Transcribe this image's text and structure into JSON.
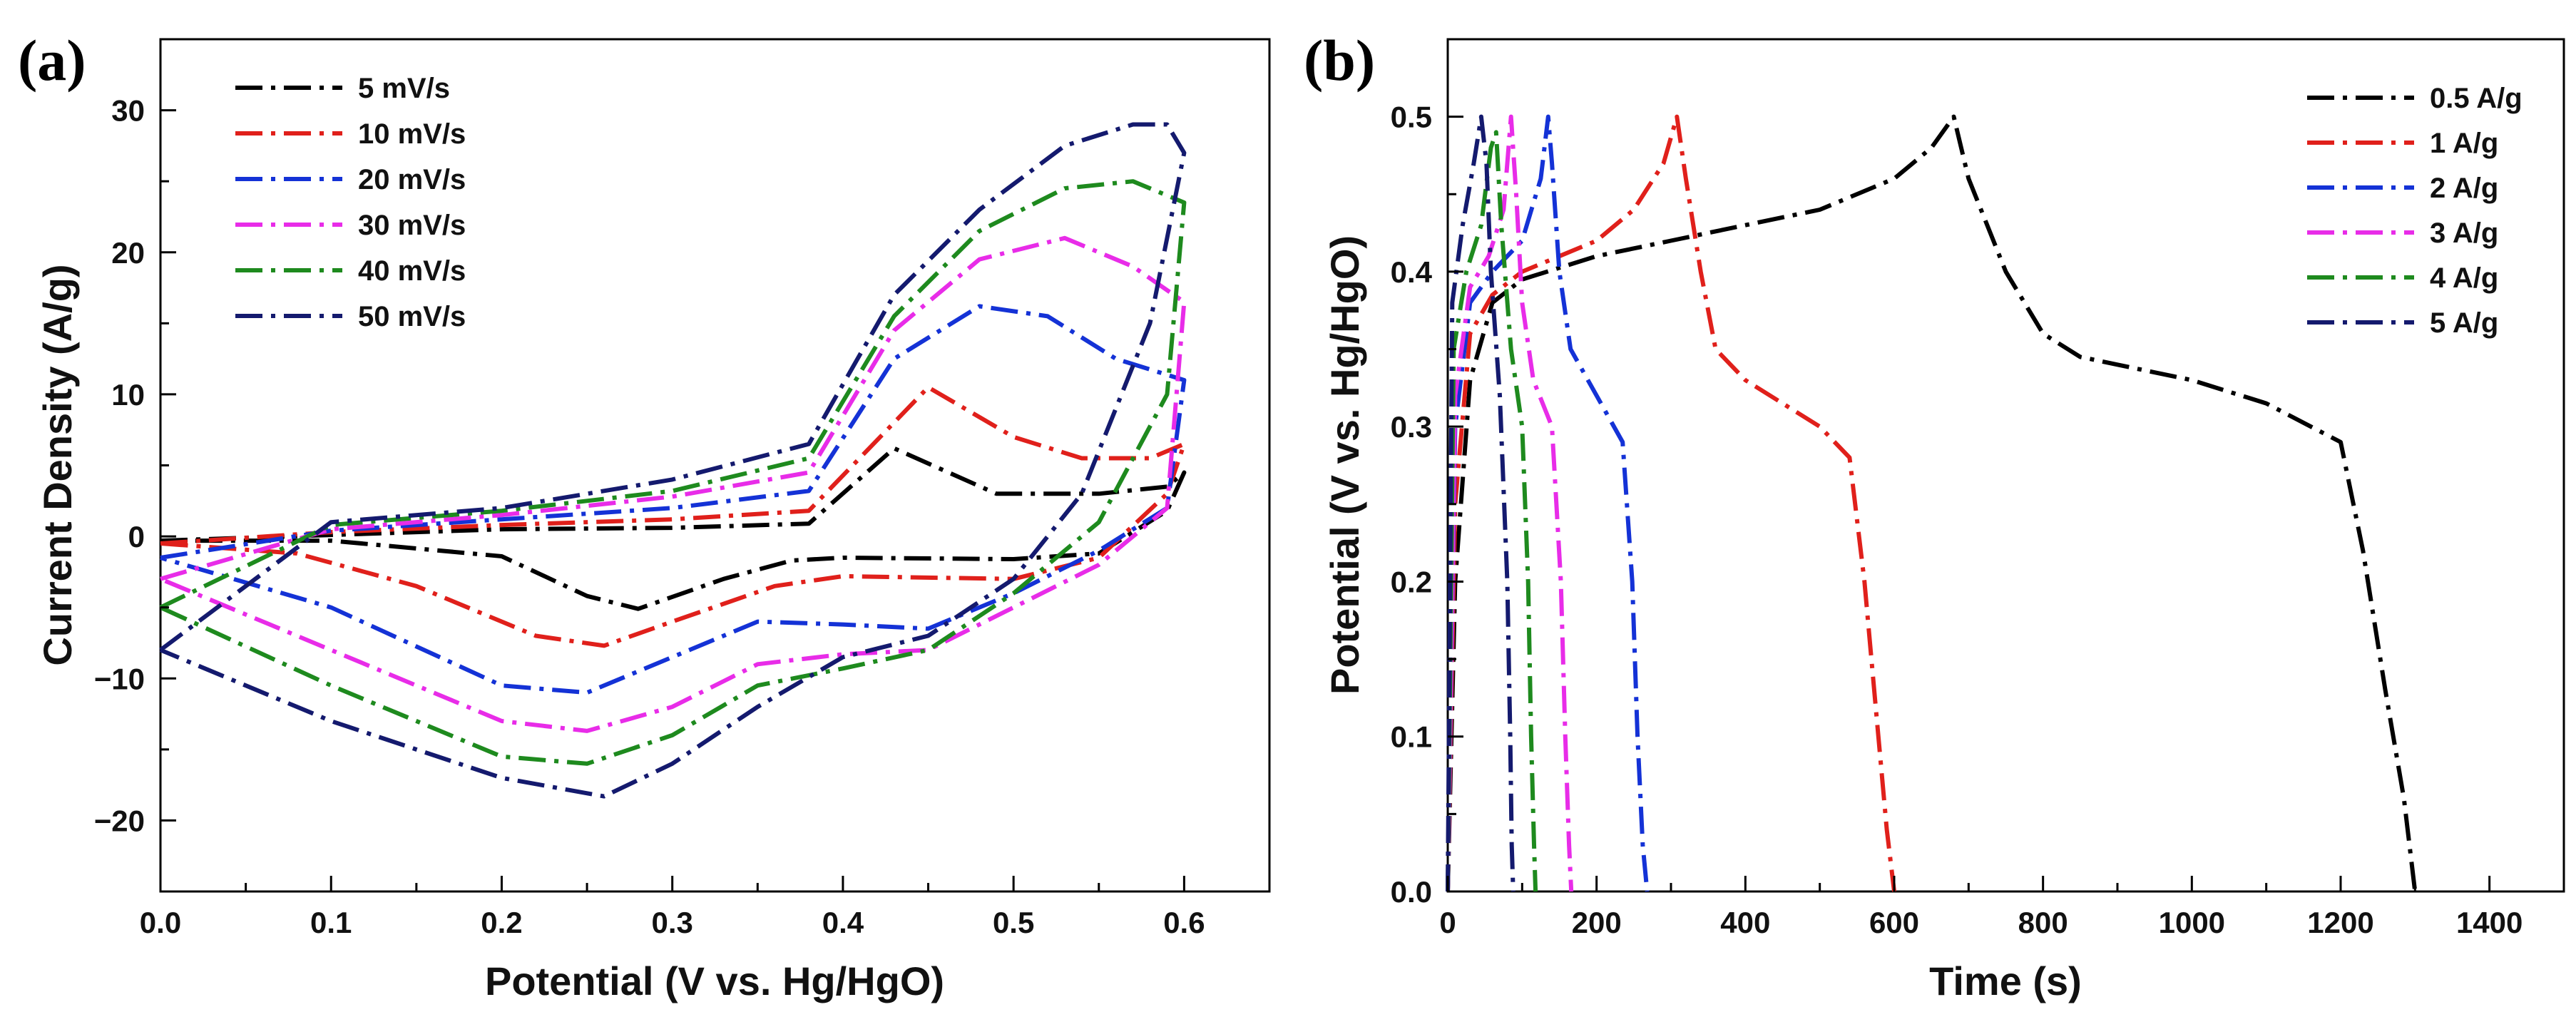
{
  "chart_data": [
    {
      "panel": "(a)",
      "type": "line",
      "title": "",
      "xlabel": "Potential (V vs. Hg/HgO)",
      "ylabel": "Current Density (A/g)",
      "xlim": [
        0.0,
        0.65
      ],
      "ylim": [
        -25,
        35
      ],
      "xticks": [
        0.0,
        0.1,
        0.2,
        0.3,
        0.4,
        0.5,
        0.6
      ],
      "xtick_labels": [
        "0.0",
        "0.1",
        "0.2",
        "0.3",
        "0.4",
        "0.5",
        "0.6"
      ],
      "yticks": [
        -20,
        -10,
        0,
        10,
        20,
        30
      ],
      "ytick_labels": [
        "−20",
        "−10",
        "0",
        "10",
        "20",
        "30"
      ],
      "legend_position": "top-left",
      "series": [
        {
          "name": "5 mV/s",
          "color": "#000000",
          "x": [
            0.0,
            0.1,
            0.2,
            0.3,
            0.38,
            0.43,
            0.49,
            0.55,
            0.59,
            0.6,
            0.59,
            0.55,
            0.5,
            0.4,
            0.37,
            0.33,
            0.28,
            0.25,
            0.2,
            0.1,
            0.0
          ],
          "y": [
            -0.3,
            0.1,
            0.5,
            0.6,
            0.9,
            6.2,
            3.0,
            3.0,
            3.5,
            4.5,
            1.8,
            -1.2,
            -1.6,
            -1.5,
            -1.7,
            -3.0,
            -5.1,
            -4.2,
            -1.4,
            -0.3,
            -0.3
          ]
        },
        {
          "name": "10 mV/s",
          "color": "#e0201b",
          "x": [
            0.0,
            0.1,
            0.2,
            0.3,
            0.38,
            0.45,
            0.5,
            0.54,
            0.58,
            0.6,
            0.59,
            0.55,
            0.5,
            0.4,
            0.36,
            0.3,
            0.26,
            0.22,
            0.15,
            0.08,
            0.0
          ],
          "y": [
            -0.5,
            0.3,
            0.8,
            1.2,
            1.8,
            10.5,
            7.0,
            5.5,
            5.5,
            6.5,
            3.0,
            -1.5,
            -3.0,
            -2.8,
            -3.5,
            -6.0,
            -7.7,
            -7.0,
            -3.5,
            -1.2,
            -0.5
          ]
        },
        {
          "name": "20 mV/s",
          "color": "#1432d6",
          "x": [
            0.0,
            0.1,
            0.2,
            0.3,
            0.38,
            0.43,
            0.48,
            0.52,
            0.56,
            0.6,
            0.59,
            0.55,
            0.5,
            0.45,
            0.4,
            0.35,
            0.3,
            0.25,
            0.2,
            0.1,
            0.0
          ],
          "y": [
            -1.5,
            0.4,
            1.2,
            2.0,
            3.2,
            12.5,
            16.2,
            15.5,
            12.5,
            11.0,
            2.0,
            -1.0,
            -4.0,
            -6.5,
            -6.2,
            -6.0,
            -8.5,
            -11.0,
            -10.5,
            -5.0,
            -1.5
          ]
        },
        {
          "name": "30 mV/s",
          "color": "#e82ce8",
          "x": [
            0.0,
            0.1,
            0.2,
            0.3,
            0.38,
            0.43,
            0.48,
            0.53,
            0.57,
            0.6,
            0.59,
            0.55,
            0.5,
            0.45,
            0.4,
            0.35,
            0.3,
            0.25,
            0.2,
            0.1,
            0.0
          ],
          "y": [
            -3.0,
            0.5,
            1.5,
            2.8,
            4.5,
            14.5,
            19.5,
            21.0,
            19.0,
            16.5,
            2.0,
            -2.0,
            -5.0,
            -8.0,
            -8.3,
            -9.0,
            -12.0,
            -13.7,
            -13.0,
            -8.0,
            -3.0
          ]
        },
        {
          "name": "40 mV/s",
          "color": "#1e8a1e",
          "x": [
            0.0,
            0.1,
            0.2,
            0.3,
            0.38,
            0.43,
            0.48,
            0.53,
            0.57,
            0.6,
            0.59,
            0.55,
            0.5,
            0.45,
            0.4,
            0.35,
            0.3,
            0.25,
            0.2,
            0.1,
            0.0
          ],
          "y": [
            -5.0,
            0.8,
            1.8,
            3.2,
            5.5,
            15.5,
            21.5,
            24.5,
            25.0,
            23.5,
            10.0,
            1.0,
            -4.0,
            -8.0,
            -9.3,
            -10.5,
            -14.0,
            -16.0,
            -15.5,
            -10.5,
            -5.0
          ]
        },
        {
          "name": "50 mV/s",
          "color": "#141a6e",
          "x": [
            0.0,
            0.1,
            0.2,
            0.3,
            0.38,
            0.43,
            0.48,
            0.53,
            0.57,
            0.59,
            0.6,
            0.58,
            0.54,
            0.5,
            0.45,
            0.4,
            0.35,
            0.3,
            0.26,
            0.2,
            0.1,
            0.0
          ],
          "y": [
            -8.0,
            1.0,
            2.0,
            4.0,
            6.5,
            17.0,
            23.0,
            27.5,
            29.0,
            29.0,
            27.0,
            15.0,
            3.0,
            -3.0,
            -7.0,
            -8.5,
            -12.0,
            -16.0,
            -18.3,
            -17.0,
            -13.0,
            -8.0
          ]
        }
      ]
    },
    {
      "panel": "(b)",
      "type": "line",
      "title": "",
      "xlabel": "Time (s)",
      "ylabel": "Potential (V vs. Hg/HgO)",
      "xlim": [
        0,
        1500
      ],
      "ylim": [
        0.0,
        0.55
      ],
      "xticks": [
        0,
        200,
        400,
        600,
        800,
        1000,
        1200,
        1400
      ],
      "xtick_labels": [
        "0",
        "200",
        "400",
        "600",
        "800",
        "1000",
        "1200",
        "1400"
      ],
      "yticks": [
        0.0,
        0.1,
        0.2,
        0.3,
        0.4,
        0.5
      ],
      "ytick_labels": [
        "0.0",
        "0.1",
        "0.2",
        "0.3",
        "0.4",
        "0.5"
      ],
      "legend_position": "top-right",
      "series": [
        {
          "name": "0.5 A/g",
          "color": "#000000",
          "x": [
            0,
            10,
            30,
            60,
            100,
            200,
            300,
            400,
            500,
            600,
            650,
            680,
            700,
            750,
            800,
            850,
            900,
            1000,
            1100,
            1200,
            1230,
            1260,
            1285,
            1300
          ],
          "y": [
            0.0,
            0.2,
            0.33,
            0.38,
            0.395,
            0.41,
            0.42,
            0.43,
            0.44,
            0.46,
            0.48,
            0.5,
            0.46,
            0.4,
            0.36,
            0.345,
            0.34,
            0.33,
            0.315,
            0.29,
            0.22,
            0.13,
            0.06,
            0.0
          ]
        },
        {
          "name": "1 A/g",
          "color": "#e0201b",
          "x": [
            0,
            10,
            30,
            60,
            100,
            150,
            200,
            250,
            290,
            308,
            320,
            340,
            360,
            400,
            450,
            500,
            540,
            560,
            575,
            590,
            600
          ],
          "y": [
            0.0,
            0.25,
            0.36,
            0.385,
            0.4,
            0.41,
            0.42,
            0.44,
            0.47,
            0.5,
            0.46,
            0.4,
            0.35,
            0.33,
            0.315,
            0.3,
            0.28,
            0.2,
            0.12,
            0.04,
            0.0
          ]
        },
        {
          "name": "2 A/g",
          "color": "#1432d6",
          "x": [
            0,
            10,
            30,
            60,
            100,
            125,
            135,
            140,
            150,
            165,
            200,
            235,
            248,
            255,
            262,
            268
          ],
          "y": [
            0.0,
            0.3,
            0.38,
            0.4,
            0.42,
            0.46,
            0.5,
            0.47,
            0.4,
            0.35,
            0.32,
            0.29,
            0.2,
            0.1,
            0.03,
            0.0
          ]
        },
        {
          "name": "3 A/g",
          "color": "#e82ce8",
          "x": [
            0,
            10,
            30,
            55,
            75,
            85,
            92,
            100,
            115,
            140,
            152,
            158,
            163,
            166
          ],
          "y": [
            0.0,
            0.32,
            0.39,
            0.41,
            0.44,
            0.5,
            0.45,
            0.38,
            0.33,
            0.3,
            0.2,
            0.1,
            0.03,
            0.0
          ]
        },
        {
          "name": "4 A/g",
          "color": "#1e8a1e",
          "x": [
            0,
            8,
            25,
            45,
            58,
            65,
            72,
            85,
            100,
            108,
            112,
            116,
            118
          ],
          "y": [
            0.0,
            0.35,
            0.4,
            0.43,
            0.48,
            0.49,
            0.43,
            0.35,
            0.3,
            0.2,
            0.1,
            0.03,
            0.0
          ]
        },
        {
          "name": "5 A/g",
          "color": "#141a6e",
          "x": [
            0,
            6,
            20,
            35,
            45,
            52,
            58,
            70,
            80,
            84,
            86,
            88
          ],
          "y": [
            0.0,
            0.38,
            0.43,
            0.47,
            0.5,
            0.47,
            0.4,
            0.32,
            0.2,
            0.1,
            0.03,
            0.0
          ]
        }
      ]
    }
  ]
}
